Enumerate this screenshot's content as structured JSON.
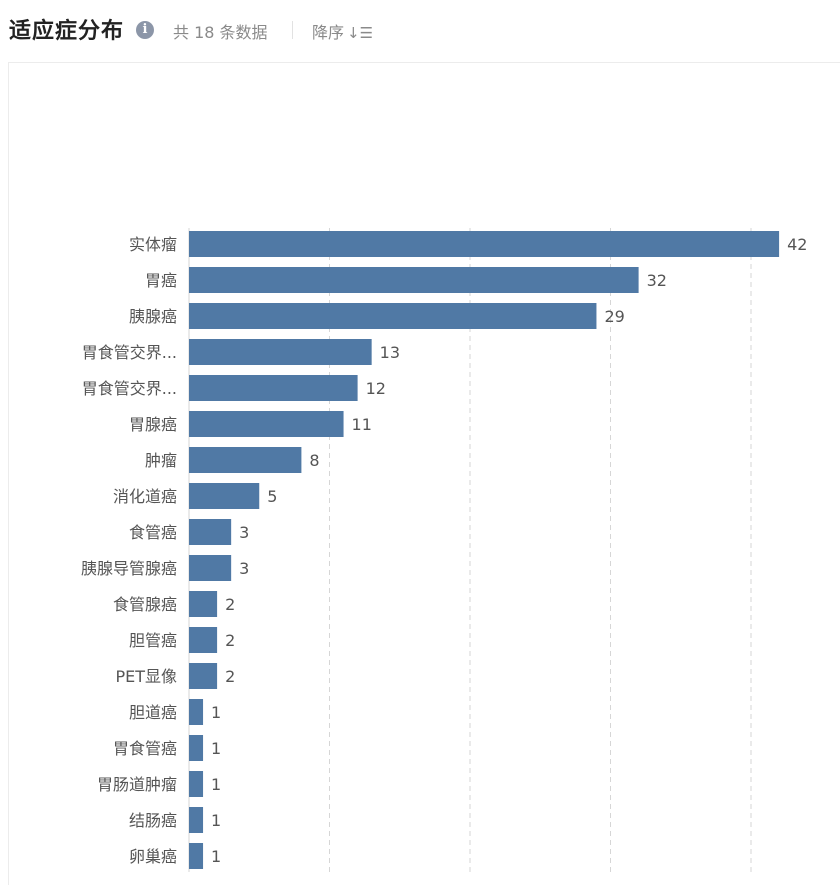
{
  "header": {
    "title": "适应症分布",
    "info_icon": "info-icon",
    "count_text": "共 18 条数据",
    "sort_label": "降序",
    "sort_icon": "sort-descending-icon"
  },
  "chart_data": {
    "type": "bar",
    "orientation": "horizontal",
    "title": "适应症分布",
    "xlabel": "",
    "ylabel": "",
    "xlim": [
      0,
      50
    ],
    "grid": "vertical-dashed",
    "bar_color": "#5079a5",
    "categories": [
      "实体瘤",
      "胃癌",
      "胰腺癌",
      "胃食管交界...",
      "胃食管交界...",
      "胃腺癌",
      "肿瘤",
      "消化道癌",
      "食管癌",
      "胰腺导管腺癌",
      "食管腺癌",
      "胆管癌",
      "PET显像",
      "胆道癌",
      "胃食管癌",
      "胃肠道肿瘤",
      "结肠癌",
      "卵巢癌"
    ],
    "values": [
      42,
      32,
      29,
      13,
      12,
      11,
      8,
      5,
      3,
      3,
      2,
      2,
      2,
      1,
      1,
      1,
      1,
      1
    ]
  }
}
